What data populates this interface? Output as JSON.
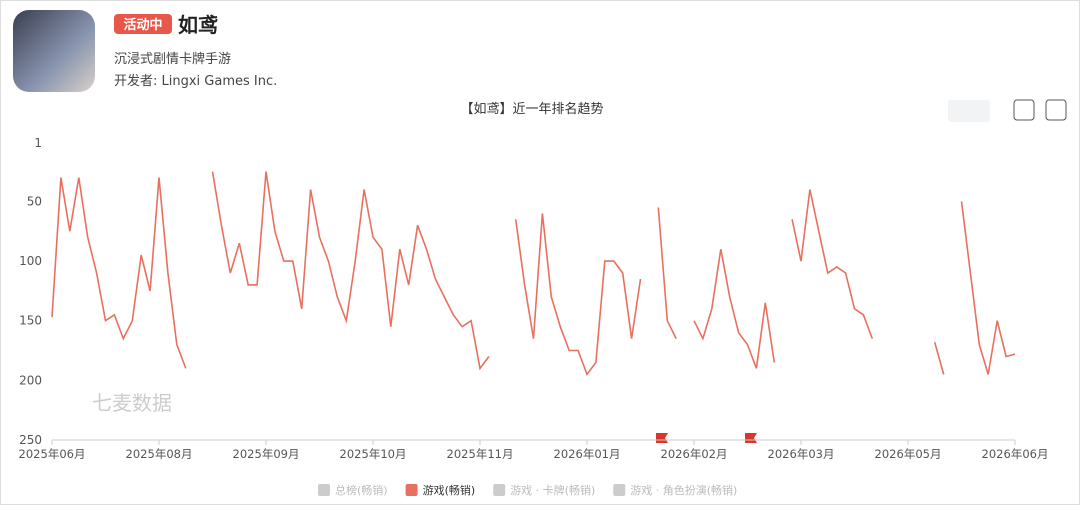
{
  "header": {
    "badge": "活动中",
    "title": "如鸢",
    "subtitle": "沉浸式剧情卡牌手游",
    "developer": "开发者: Lingxi Games Inc."
  },
  "chart_data": {
    "type": "line",
    "title": "【如鸢】近一年排名趋势",
    "watermark": "七麦数据",
    "categories": [
      "2025年06月",
      null,
      null,
      null,
      null,
      null,
      null,
      null,
      null,
      null,
      null,
      null,
      "2025年08月",
      null,
      null,
      null,
      null,
      null,
      null,
      null,
      null,
      null,
      null,
      null,
      "2025年09月",
      null,
      null,
      null,
      null,
      null,
      null,
      null,
      null,
      null,
      null,
      null,
      "2025年10月",
      null,
      null,
      null,
      null,
      null,
      null,
      null,
      null,
      null,
      null,
      null,
      "2025年11月",
      null,
      null,
      null,
      null,
      null,
      null,
      null,
      null,
      null,
      null,
      null,
      "2026年01月",
      null,
      null,
      null,
      null,
      null,
      null,
      null,
      null,
      null,
      null,
      null,
      "2026年02月",
      null,
      null,
      null,
      null,
      null,
      null,
      null,
      null,
      null,
      null,
      null,
      "2026年03月",
      null,
      null,
      null,
      null,
      null,
      null,
      null,
      null,
      null,
      null,
      null,
      "2026年05月",
      null,
      null,
      null,
      null,
      null,
      null,
      null,
      null,
      null,
      null,
      null,
      "2026年06月"
    ],
    "series": [
      {
        "name": "游戏(畅销)",
        "color": "#e8705f",
        "values": [
          147,
          30,
          75,
          30,
          80,
          110,
          150,
          145,
          165,
          150,
          95,
          125,
          30,
          110,
          170,
          190,
          null,
          null,
          25,
          70,
          110,
          85,
          120,
          120,
          25,
          75,
          100,
          100,
          140,
          40,
          80,
          100,
          130,
          150,
          100,
          40,
          80,
          90,
          155,
          90,
          120,
          70,
          90,
          115,
          130,
          145,
          155,
          150,
          190,
          180,
          null,
          null,
          65,
          120,
          165,
          60,
          130,
          155,
          175,
          175,
          195,
          185,
          100,
          100,
          110,
          165,
          115,
          null,
          55,
          150,
          165,
          null,
          150,
          165,
          140,
          90,
          130,
          160,
          170,
          190,
          135,
          185,
          null,
          65,
          100,
          40,
          75,
          110,
          105,
          110,
          140,
          145,
          165,
          null,
          null,
          null,
          null,
          null,
          null,
          168,
          195,
          null,
          50,
          110,
          170,
          195,
          150,
          180,
          178
        ]
      }
    ],
    "inactive_series": [
      "总榜(畅销)",
      "游戏 · 卡牌(畅销)",
      "游戏 · 角色扮演(畅销)"
    ],
    "ylim": [
      1,
      250
    ],
    "reversed": true,
    "yticks": [
      1,
      50,
      100,
      150,
      200,
      250
    ],
    "grid": false
  }
}
